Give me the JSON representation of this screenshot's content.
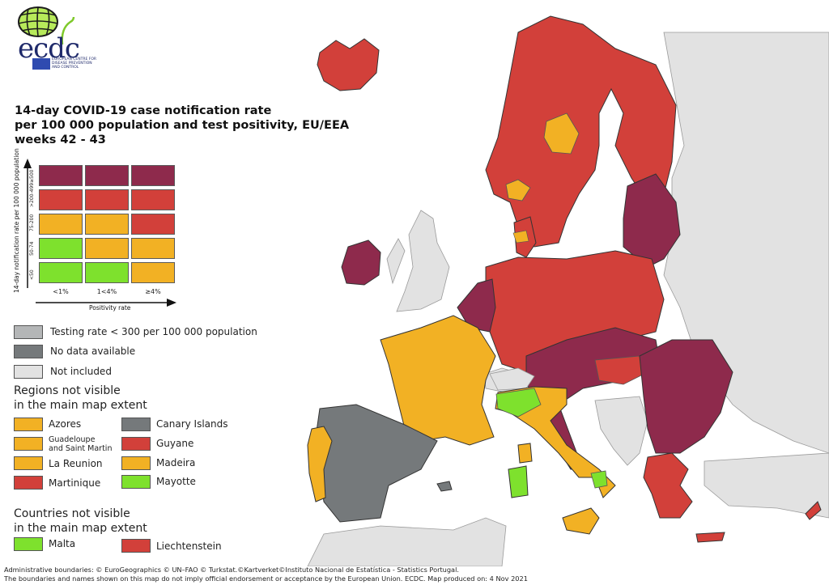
{
  "header": {
    "logo": {
      "name": "ecdc",
      "subtitle_lines": [
        "EUROPEAN CENTRE FOR",
        "DISEASE PREVENTION",
        "AND CONTROL"
      ]
    },
    "title_lines": [
      "14-day COVID-19 case notification rate",
      "per 100 000 population and test positivity, EU/EEA",
      "weeks 42 - 43"
    ]
  },
  "colors": {
    "dark_red": "#8e2a4c",
    "red": "#d2403a",
    "orange": "#f2b124",
    "green": "#7ee12d",
    "testing_low": "#b4b6b7",
    "no_data": "#75797b",
    "not_included": "#e2e2e2"
  },
  "matrix": {
    "y_axis_title": "14-day notification rate per 100 000 population",
    "x_axis_title": "Positivity rate",
    "row_labels": [
      "≥500",
      ">200-499",
      "75-200",
      "50-74",
      "<50"
    ],
    "col_labels": [
      "<1%",
      "1<4%",
      "≥4%"
    ],
    "cells": [
      [
        "dark_red",
        "dark_red",
        "dark_red"
      ],
      [
        "red",
        "red",
        "red"
      ],
      [
        "orange",
        "orange",
        "red"
      ],
      [
        "green",
        "orange",
        "orange"
      ],
      [
        "green",
        "green",
        "orange"
      ]
    ]
  },
  "legend": {
    "special": [
      {
        "label": "Testing rate < 300 per 100 000 population",
        "color": "testing_low"
      },
      {
        "label": "No data available",
        "color": "no_data"
      },
      {
        "label": "Not included",
        "color": "not_included"
      }
    ],
    "regions_heading": [
      "Regions not visible",
      "in the main map extent"
    ],
    "regions": [
      {
        "label": "Azores",
        "color": "orange"
      },
      {
        "label": "Canary Islands",
        "color": "no_data"
      },
      {
        "label": "Guadeloupe and Saint Martin",
        "label_lines": [
          "Guadeloupe",
          "and Saint Martin"
        ],
        "color": "orange"
      },
      {
        "label": "Guyane",
        "color": "red"
      },
      {
        "label": "La Reunion",
        "color": "orange"
      },
      {
        "label": "Madeira",
        "color": "orange"
      },
      {
        "label": "Martinique",
        "color": "red"
      },
      {
        "label": "Mayotte",
        "color": "green"
      }
    ],
    "countries_heading": [
      "Countries not visible",
      "in the main map extent"
    ],
    "countries": [
      {
        "label": "Malta",
        "color": "green"
      },
      {
        "label": "Liechtenstein",
        "color": "red"
      }
    ]
  },
  "map": {
    "country_status": [
      {
        "name": "Iceland",
        "color": "red"
      },
      {
        "name": "Norway",
        "color": "red",
        "note": "two regions orange"
      },
      {
        "name": "Sweden",
        "color": "red",
        "note": "one region orange"
      },
      {
        "name": "Finland",
        "color": "red"
      },
      {
        "name": "Estonia",
        "color": "dark_red"
      },
      {
        "name": "Latvia",
        "color": "dark_red"
      },
      {
        "name": "Lithuania",
        "color": "dark_red"
      },
      {
        "name": "Denmark",
        "color": "red",
        "note": "one region orange"
      },
      {
        "name": "Ireland",
        "color": "dark_red"
      },
      {
        "name": "Netherlands",
        "color": "dark_red"
      },
      {
        "name": "Belgium",
        "color": "dark_red"
      },
      {
        "name": "Luxembourg",
        "color": "red"
      },
      {
        "name": "Germany",
        "color": "red",
        "note": "some regions dark red"
      },
      {
        "name": "Poland",
        "color": "red",
        "note": "eastern regions dark red"
      },
      {
        "name": "Czechia",
        "color": "dark_red"
      },
      {
        "name": "Slovakia",
        "color": "dark_red"
      },
      {
        "name": "Austria",
        "color": "dark_red"
      },
      {
        "name": "Hungary",
        "color": "red",
        "note": "mixed"
      },
      {
        "name": "Slovenia",
        "color": "dark_red"
      },
      {
        "name": "Croatia",
        "color": "dark_red"
      },
      {
        "name": "Romania",
        "color": "dark_red"
      },
      {
        "name": "Bulgaria",
        "color": "dark_red"
      },
      {
        "name": "Greece",
        "color": "red",
        "note": "north region dark red"
      },
      {
        "name": "Cyprus",
        "color": "red"
      },
      {
        "name": "France",
        "color": "orange"
      },
      {
        "name": "Italy",
        "color": "orange",
        "note": "some regions green"
      },
      {
        "name": "Portugal",
        "color": "orange"
      },
      {
        "name": "Spain",
        "color": "no_data"
      },
      {
        "name": "Switzerland",
        "color": "not_included"
      },
      {
        "name": "United Kingdom",
        "color": "not_included"
      }
    ]
  },
  "footer": {
    "line1": "Administrative boundaries: © EuroGeographics © UN–FAO © Turkstat.©Kartverket©Instituto Nacional de Estatística - Statistics Portugal.",
    "line2": "The boundaries and names shown on this map do not imply official endorsement or acceptance by the European Union. ECDC. Map produced on: 4 Nov 2021"
  }
}
